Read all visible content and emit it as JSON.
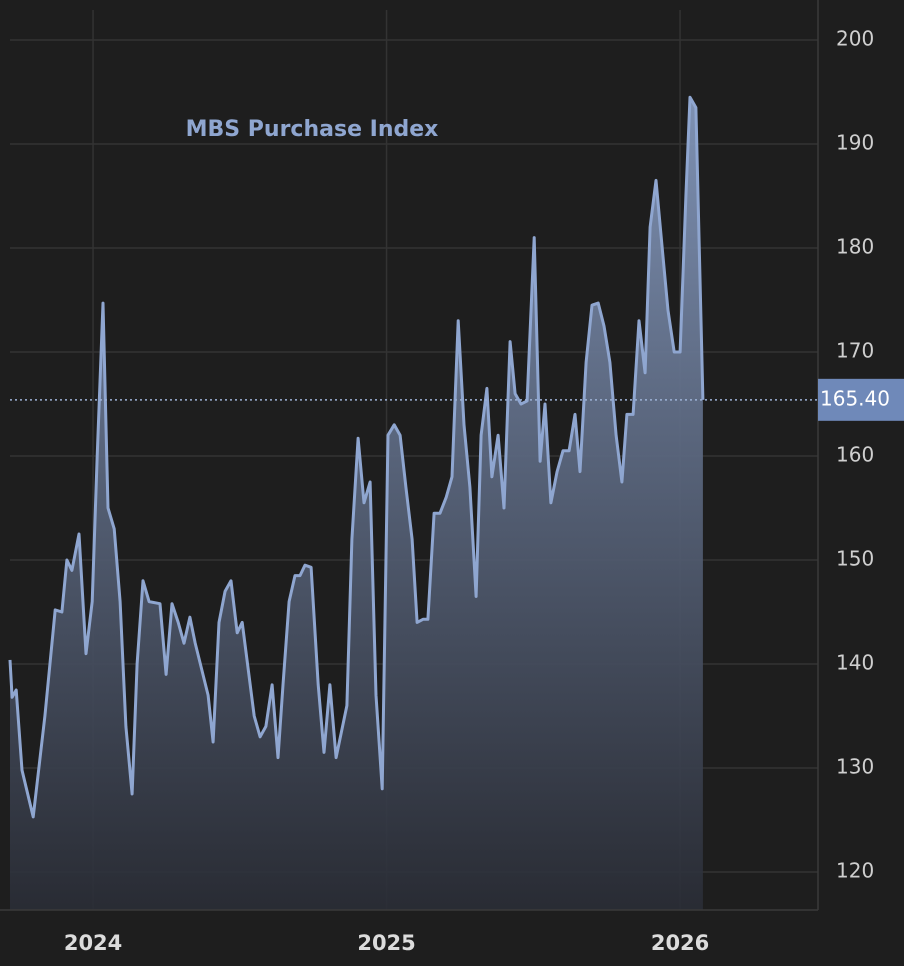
{
  "chart_data": {
    "type": "area",
    "series": [
      {
        "name": "MBS Purchase Index",
        "color": "#8fa6d0",
        "x": [
          2023.717,
          2023.724,
          2023.738,
          2023.758,
          2023.796,
          2023.836,
          2023.871,
          2023.894,
          2023.911,
          2023.928,
          2023.952,
          2023.976,
          2023.997,
          2024.014,
          2024.034,
          2024.051,
          2024.072,
          2024.092,
          2024.112,
          2024.133,
          2024.15,
          2024.17,
          2024.191,
          2024.228,
          2024.249,
          2024.269,
          2024.29,
          2024.31,
          2024.33,
          2024.348,
          2024.392,
          2024.409,
          2024.429,
          2024.45,
          2024.47,
          2024.491,
          2024.508,
          2024.549,
          2024.569,
          2024.589,
          2024.61,
          2024.63,
          2024.647,
          2024.668,
          2024.688,
          2024.705,
          2024.722,
          2024.743,
          2024.767,
          2024.787,
          2024.807,
          2024.828,
          2024.865,
          2024.882,
          2024.903,
          2024.923,
          2024.944,
          2024.964,
          2024.985,
          2025.005,
          2025.026,
          2025.046,
          2025.066,
          2025.087,
          2025.104,
          2025.124,
          2025.141,
          2025.162,
          2025.182,
          2025.203,
          2025.223,
          2025.244,
          2025.264,
          2025.284,
          2025.305,
          2025.322,
          2025.342,
          2025.359,
          2025.38,
          2025.4,
          2025.421,
          2025.438,
          2025.458,
          2025.479,
          2025.503,
          2025.523,
          2025.54,
          2025.56,
          2025.581,
          2025.601,
          2025.622,
          2025.642,
          2025.659,
          2025.68,
          2025.7,
          2025.721,
          2025.741,
          2025.761,
          2025.782,
          2025.802,
          2025.819,
          2025.84,
          2025.86,
          2025.881,
          2025.898,
          2025.918,
          2025.939,
          2025.959,
          2025.98,
          2026.0,
          2026.02,
          2026.034,
          2026.054,
          2026.078
        ],
        "values": [
          140.4,
          136.8,
          137.5,
          129.8,
          125.3,
          135,
          145.2,
          145,
          150,
          149,
          152.5,
          141,
          146,
          160,
          174.7,
          155,
          153,
          146,
          134,
          127.5,
          140,
          148,
          146,
          145.8,
          139,
          145.8,
          144,
          142,
          144.5,
          142,
          137,
          132.5,
          144,
          147,
          148,
          143,
          144,
          135,
          133,
          134,
          138,
          131,
          138,
          146,
          148.5,
          148.5,
          149.5,
          149.3,
          138,
          131.5,
          138,
          131,
          136,
          152,
          161.7,
          155.5,
          157.5,
          137,
          128,
          162,
          163,
          162,
          157,
          152,
          144,
          144.3,
          144.3,
          154.5,
          154.5,
          156,
          158,
          173,
          163,
          157,
          146.5,
          162,
          166.5,
          158,
          162,
          155,
          171,
          166,
          165,
          165.3,
          181,
          159.5,
          165,
          155.5,
          158.5,
          160.5,
          160.5,
          164,
          158.5,
          169,
          174.5,
          174.7,
          172.5,
          169,
          162,
          157.5,
          164,
          164,
          173,
          168,
          182,
          186.5,
          180,
          174,
          170,
          170,
          185,
          194.5,
          193.5,
          165.4
        ]
      }
    ],
    "last_value_label": "165.40",
    "xlim": [
      2023.717,
      2026.47
    ],
    "xticks": [
      2024,
      2025,
      2026
    ],
    "ylim": [
      116.35,
      202.88
    ],
    "yticks": [
      120,
      130,
      140,
      150,
      160,
      170,
      180,
      190,
      200
    ],
    "grid": true
  }
}
